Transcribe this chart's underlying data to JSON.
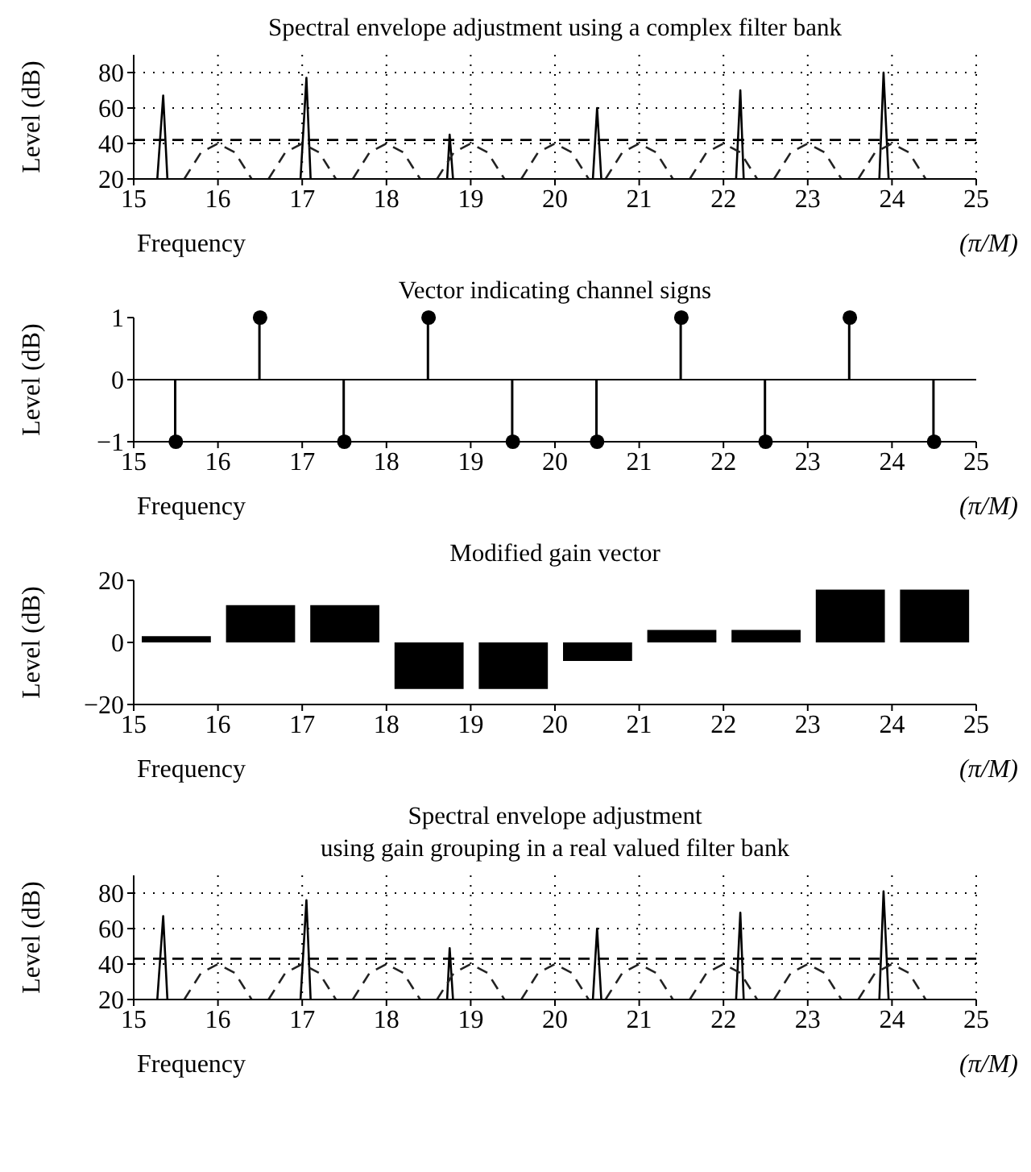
{
  "chart_data": [
    {
      "type": "line",
      "title": "Spectral envelope adjustment using a complex filter bank",
      "xlabel": "Frequency",
      "ylabel": "Level (dB)",
      "annotations": [
        "(π/M)"
      ],
      "xlim": [
        15,
        25
      ],
      "ylim": [
        20,
        90
      ],
      "xticks": [
        15,
        16,
        17,
        18,
        19,
        20,
        21,
        22,
        23,
        24,
        25
      ],
      "yticks": [
        20,
        40,
        60,
        80
      ],
      "grid": true,
      "marker": "none",
      "series": [
        {
          "color": "#000000",
          "x": [
            15.28,
            15.35,
            15.4,
            15.5,
            16.98,
            17.05,
            17.1,
            17.2,
            18.72,
            18.75,
            18.79,
            18.9,
            20.45,
            20.5,
            20.55,
            20.6,
            22.15,
            22.2,
            22.24,
            22.3,
            23.85,
            23.9,
            23.96
          ],
          "values": [
            20,
            67,
            20,
            null,
            20,
            77,
            20,
            null,
            20,
            45,
            20,
            null,
            20,
            60,
            20,
            null,
            20,
            70,
            20,
            null,
            20,
            80,
            20
          ]
        },
        {
          "color": "#000000",
          "line_style": "dashed",
          "x": [
            15,
            25
          ],
          "values": [
            42,
            42
          ]
        },
        {
          "color": "#222222",
          "line_style": "dashed",
          "x": [
            15.6,
            15.8,
            16,
            16.2,
            16.4,
            16.5,
            16.6,
            16.8,
            17,
            17.2,
            17.4,
            17.5,
            17.6,
            17.8,
            18,
            18.2,
            18.4,
            18.5,
            18.6,
            18.8,
            19,
            19.2,
            19.4,
            19.5,
            19.6,
            19.8,
            20,
            20.2,
            20.4,
            20.5,
            20.6,
            20.8,
            21,
            21.2,
            21.4,
            21.5,
            21.6,
            21.8,
            22,
            22.2,
            22.4,
            22.5,
            22.6,
            22.8,
            23,
            23.2,
            23.4,
            23.5,
            23.6,
            23.8,
            24,
            24.2,
            24.4
          ],
          "values": [
            20,
            35,
            40,
            35,
            20,
            null,
            20,
            35,
            40,
            35,
            20,
            null,
            20,
            35,
            40,
            35,
            20,
            null,
            20,
            35,
            40,
            35,
            20,
            null,
            20,
            35,
            40,
            35,
            20,
            null,
            20,
            35,
            40,
            35,
            20,
            null,
            20,
            35,
            40,
            35,
            20,
            null,
            20,
            35,
            40,
            35,
            20,
            null,
            20,
            35,
            40,
            35,
            20
          ]
        }
      ]
    },
    {
      "type": "lollipop",
      "title": "Vector indicating channel signs",
      "xlabel": "Frequency",
      "ylabel": "Level (dB)",
      "annotations": [
        "(π/M)"
      ],
      "xlim": [
        15,
        25
      ],
      "ylim": [
        -1,
        1
      ],
      "xticks": [
        15,
        16,
        17,
        18,
        19,
        20,
        21,
        22,
        23,
        24,
        25
      ],
      "yticks": [
        {
          "value": -1,
          "label": "−1"
        },
        0,
        1
      ],
      "marker": "circle",
      "ref_lines": [
        {
          "axis": "y",
          "value": 0,
          "color": "#000000"
        }
      ],
      "series": [
        {
          "color": "#000000",
          "x": [
            15.5,
            16.5,
            17.5,
            18.5,
            19.5,
            20.5,
            21.5,
            22.5,
            23.5,
            24.5
          ],
          "values": [
            -1,
            1,
            -1,
            1,
            -1,
            -1,
            1,
            -1,
            1,
            -1
          ]
        }
      ]
    },
    {
      "type": "bar",
      "title": "Modified gain vector",
      "xlabel": "Frequency",
      "ylabel": "Level (dB)",
      "annotations": [
        "(π/M)"
      ],
      "xlim": [
        15,
        25
      ],
      "ylim": [
        -20,
        20
      ],
      "xticks": [
        15,
        16,
        17,
        18,
        19,
        20,
        21,
        22,
        23,
        24,
        25
      ],
      "yticks": [
        {
          "value": -20,
          "label": "−20"
        },
        0,
        20
      ],
      "series": [
        {
          "color": "#000000",
          "x": [
            15.5,
            16.5,
            17.5,
            18.5,
            19.5,
            20.5,
            21.5,
            22.5,
            23.5,
            24.5
          ],
          "values": [
            2,
            12,
            12,
            -15,
            -15,
            -6,
            4,
            4,
            17,
            17
          ]
        }
      ]
    },
    {
      "type": "line",
      "title": "Spectral envelope adjustment",
      "subtitle": "using gain grouping in a real valued filter bank",
      "xlabel": "Frequency",
      "ylabel": "Level (dB)",
      "annotations": [
        "(π/M)"
      ],
      "xlim": [
        15,
        25
      ],
      "ylim": [
        20,
        90
      ],
      "xticks": [
        15,
        16,
        17,
        18,
        19,
        20,
        21,
        22,
        23,
        24,
        25
      ],
      "yticks": [
        20,
        40,
        60,
        80
      ],
      "grid": true,
      "marker": "none",
      "series": [
        {
          "color": "#000000",
          "x": [
            15.28,
            15.35,
            15.4,
            15.5,
            16.98,
            17.05,
            17.1,
            17.2,
            18.72,
            18.75,
            18.79,
            18.9,
            20.45,
            20.5,
            20.55,
            20.6,
            22.15,
            22.2,
            22.24,
            22.3,
            23.85,
            23.9,
            23.96
          ],
          "values": [
            20,
            67,
            20,
            null,
            20,
            76,
            20,
            null,
            20,
            49,
            20,
            null,
            20,
            60,
            20,
            null,
            20,
            69,
            20,
            null,
            20,
            81,
            20
          ]
        },
        {
          "color": "#000000",
          "line_style": "dashed",
          "x": [
            15,
            25
          ],
          "values": [
            43,
            43
          ]
        },
        {
          "color": "#222222",
          "line_style": "dashed",
          "x": [
            15.6,
            15.8,
            16,
            16.2,
            16.4,
            16.5,
            16.6,
            16.8,
            17,
            17.2,
            17.4,
            17.5,
            17.6,
            17.8,
            18,
            18.2,
            18.4,
            18.5,
            18.6,
            18.8,
            19,
            19.2,
            19.4,
            19.5,
            19.6,
            19.8,
            20,
            20.2,
            20.4,
            20.5,
            20.6,
            20.8,
            21,
            21.2,
            21.4,
            21.5,
            21.6,
            21.8,
            22,
            22.2,
            22.4,
            22.5,
            22.6,
            22.8,
            23,
            23.2,
            23.4,
            23.5,
            23.6,
            23.8,
            24,
            24.2,
            24.4
          ],
          "values": [
            20,
            35,
            40,
            35,
            20,
            null,
            20,
            35,
            40,
            35,
            20,
            null,
            20,
            35,
            40,
            35,
            20,
            null,
            20,
            35,
            40,
            35,
            20,
            null,
            20,
            35,
            40,
            35,
            20,
            null,
            20,
            35,
            40,
            35,
            20,
            null,
            20,
            35,
            40,
            35,
            20,
            null,
            20,
            35,
            40,
            35,
            20,
            null,
            20,
            35,
            40,
            35,
            20
          ]
        }
      ]
    }
  ]
}
